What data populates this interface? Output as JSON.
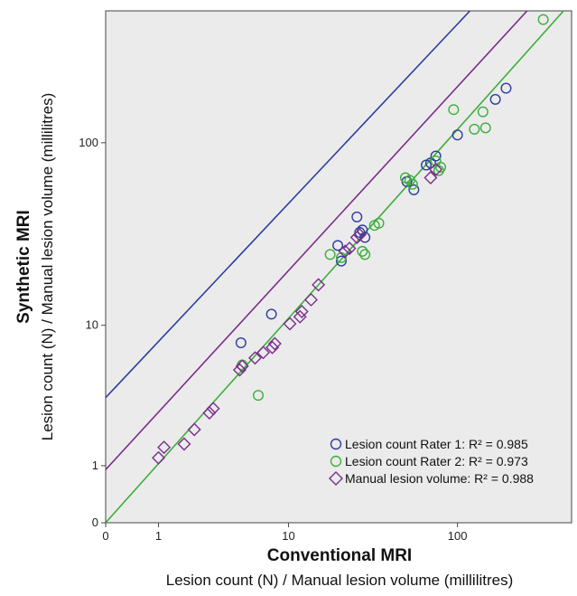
{
  "chart_data": {
    "type": "scatter",
    "xlabel": "Conventional MRI",
    "xlabel_sub": "Lesion count (N) / Manual lesion volume (millilitres)",
    "ylabel": "Synthetic MRI",
    "ylabel_sub": "Lesion count (N) / Manual lesion volume (millilitres)",
    "x_scale": "log(x+1)",
    "y_scale": "log(y+1)",
    "xlim": [
      0,
      450
    ],
    "ylim": [
      0,
      500
    ],
    "x_ticks": [
      0,
      1,
      10,
      100
    ],
    "y_ticks": [
      0,
      1,
      10,
      100
    ],
    "x_tick_labels": [
      "0",
      "1",
      "10",
      "100"
    ],
    "y_tick_labels": [
      "0",
      "1",
      "10",
      "100"
    ],
    "plot_background": "#ebebeb",
    "grid": false,
    "legend_position": "bottom-right",
    "series": [
      {
        "name": "Lesion count Rater 1",
        "r2_label": "R² = 0.985",
        "marker": "circle",
        "color": "#2e3d9e",
        "x": [
          4.9,
          7.8,
          20,
          21,
          26,
          27,
          28,
          29,
          51,
          56,
          66,
          70,
          75,
          100,
          165,
          190
        ],
        "y": [
          7.9,
          11.6,
          28,
          23,
          40,
          33,
          34,
          31,
          62,
          56,
          76,
          78,
          85,
          110,
          170,
          195
        ],
        "fit": {
          "intercept": 0.66,
          "slope": 0.983
        }
      },
      {
        "name": "Lesion count Rater 2",
        "r2_label": "R² = 0.973",
        "marker": "circle",
        "color": "#3dae3d",
        "x": [
          5,
          6.4,
          18,
          21,
          28,
          29,
          33,
          35,
          50,
          53,
          55,
          75,
          78,
          80,
          95,
          125,
          140,
          145,
          310
        ],
        "y": [
          5.8,
          3.7,
          25,
          24,
          26,
          25,
          36,
          37,
          65,
          63,
          60,
          80,
          71,
          74,
          150,
          118,
          146,
          120,
          450
        ],
        "fit": {
          "intercept": 0.0,
          "slope": 1.035
        }
      },
      {
        "name": "Manual lesion volume",
        "r2_label": "R² = 0.988",
        "marker": "diamond",
        "color": "#7a2e8c",
        "x": [
          1.0,
          1.15,
          1.8,
          2.2,
          2.9,
          3.1,
          4.8,
          5.0,
          6.1,
          6.9,
          7.9,
          8.2,
          10.2,
          11.8,
          12.1,
          13.8,
          15.3,
          22.1,
          23.5,
          26,
          27,
          70,
          75
        ],
        "y": [
          1.2,
          1.5,
          1.6,
          2.1,
          2.8,
          3.0,
          5.4,
          5.7,
          6.4,
          6.9,
          7.4,
          7.8,
          10.2,
          11.2,
          12.0,
          14.0,
          17.0,
          26.0,
          27.0,
          31.0,
          32.0,
          65.0,
          72.0
        ],
        "fit": {
          "intercept": 0.28,
          "slope": 1.008
        }
      }
    ]
  }
}
